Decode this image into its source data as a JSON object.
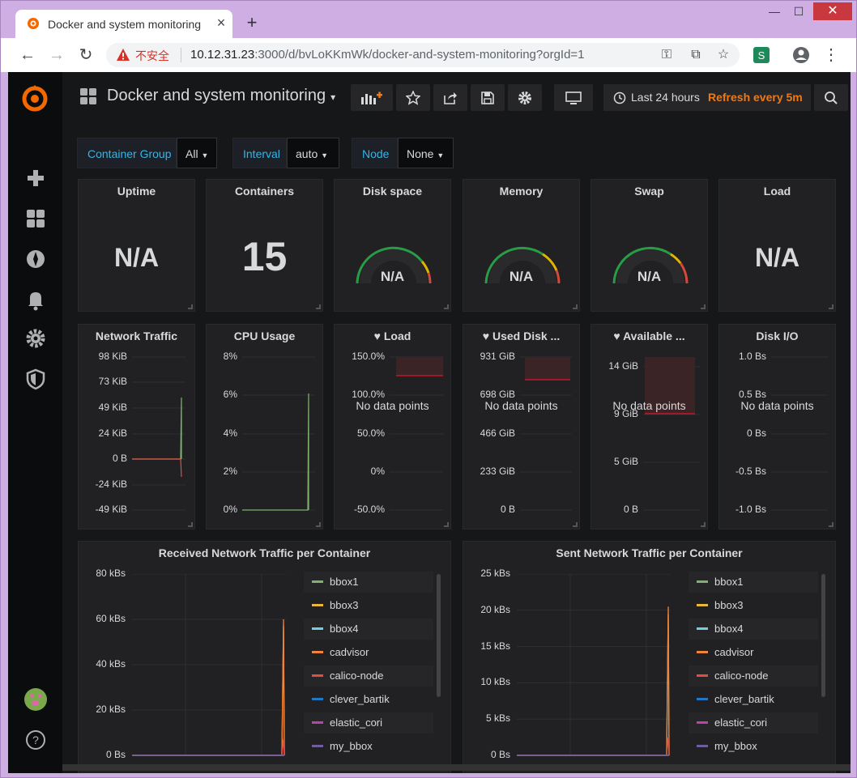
{
  "browser": {
    "tab_title": "Docker and system monitoring",
    "insecure_label": "不安全",
    "url_host": "10.12.31.23",
    "url_rest": ":3000/d/bvLoKKmWk/docker-and-system-monitoring?orgId=1"
  },
  "dashboard": {
    "title": "Docker and system monitoring",
    "time_range": "Last 24 hours",
    "refresh": "Refresh every 5m"
  },
  "variables": [
    {
      "label": "Container Group",
      "value": "All"
    },
    {
      "label": "Interval",
      "value": "auto"
    },
    {
      "label": "Node",
      "value": "None"
    }
  ],
  "stat_panels": {
    "uptime": {
      "title": "Uptime",
      "value": "N/A"
    },
    "containers": {
      "title": "Containers",
      "value": "15"
    },
    "disk": {
      "title": "Disk space",
      "value": "N/A"
    },
    "memory": {
      "title": "Memory",
      "value": "N/A"
    },
    "swap": {
      "title": "Swap",
      "value": "N/A"
    },
    "load": {
      "title": "Load",
      "value": "N/A"
    }
  },
  "graph_panels": {
    "net": {
      "title": "Network Traffic",
      "ticks": [
        "98 KiB",
        "73 KiB",
        "49 KiB",
        "24 KiB",
        "0 B",
        "-24 KiB",
        "-49 KiB"
      ]
    },
    "cpu": {
      "title": "CPU Usage",
      "ticks": [
        "8%",
        "6%",
        "4%",
        "2%",
        "0%"
      ]
    },
    "load": {
      "title": "Load",
      "ticks": [
        "150.0%",
        "100.0%",
        "50.0%",
        "0%",
        "-50.0%"
      ],
      "nodata": "No data points"
    },
    "disk": {
      "title": "Used Disk ...",
      "ticks": [
        "931 GiB",
        "698 GiB",
        "466 GiB",
        "233 GiB",
        "0 B"
      ],
      "nodata": "No data points"
    },
    "avail": {
      "title": "Available ...",
      "ticks": [
        "14 GiB",
        "9 GiB",
        "5 GiB",
        "0 B"
      ],
      "nodata": "No data points"
    },
    "diskio": {
      "title": "Disk I/O",
      "ticks": [
        "1.0 Bs",
        "0.5 Bs",
        "0 Bs",
        "-0.5 Bs",
        "-1.0 Bs"
      ],
      "nodata": "No data points"
    }
  },
  "chart_data": [
    {
      "type": "line",
      "title": "Received Network Traffic per Container",
      "ylim": [
        0,
        80
      ],
      "yticks": [
        "80 kBs",
        "60 kBs",
        "40 kBs",
        "20 kBs",
        "0 Bs"
      ],
      "series": [
        {
          "name": "bbox1",
          "color": "#7eb26d"
        },
        {
          "name": "bbox3",
          "color": "#eab839"
        },
        {
          "name": "bbox4",
          "color": "#6ed0e0"
        },
        {
          "name": "cadvisor",
          "color": "#ef843c"
        },
        {
          "name": "calico-node",
          "color": "#e24d42"
        },
        {
          "name": "clever_bartik",
          "color": "#1f78c1"
        },
        {
          "name": "elastic_cori",
          "color": "#ba43a9"
        },
        {
          "name": "my_bbox",
          "color": "#705da0"
        }
      ],
      "spike_peak": 60
    },
    {
      "type": "line",
      "title": "Sent Network Traffic per Container",
      "ylim": [
        0,
        25
      ],
      "yticks": [
        "25 kBs",
        "20 kBs",
        "15 kBs",
        "10 kBs",
        "5 kBs",
        "0 Bs"
      ],
      "series": [
        {
          "name": "bbox1",
          "color": "#7eb26d"
        },
        {
          "name": "bbox3",
          "color": "#eab839"
        },
        {
          "name": "bbox4",
          "color": "#6ed0e0"
        },
        {
          "name": "cadvisor",
          "color": "#ef843c"
        },
        {
          "name": "calico-node",
          "color": "#e24d42"
        },
        {
          "name": "clever_bartik",
          "color": "#1f78c1"
        },
        {
          "name": "elastic_cori",
          "color": "#ba43a9"
        },
        {
          "name": "my_bbox",
          "color": "#705da0"
        }
      ],
      "spike_peak": 20.5
    }
  ]
}
